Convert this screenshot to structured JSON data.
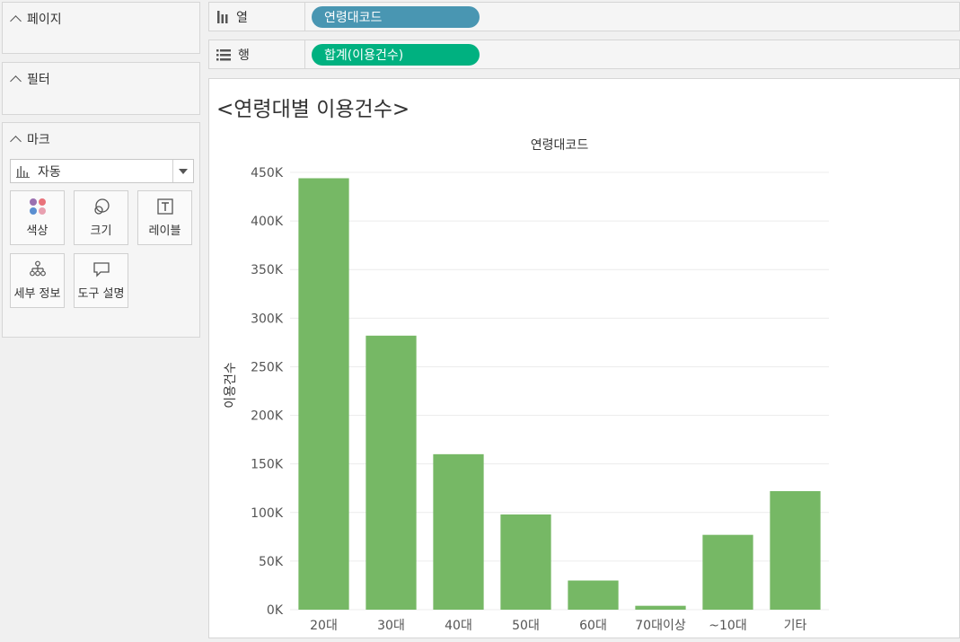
{
  "cards": {
    "pages": {
      "title": "페이지"
    },
    "filters": {
      "title": "필터"
    },
    "marks": {
      "title": "마크",
      "mark_type": "자동",
      "buttons": {
        "color": "색상",
        "size": "크기",
        "label": "레이블",
        "detail": "세부 정보",
        "tooltip": "도구 설명"
      }
    }
  },
  "shelves": {
    "columns": {
      "label": "열",
      "pill": "연령대코드",
      "pill_color": "#4996b2"
    },
    "rows": {
      "label": "행",
      "pill": "합계(이용건수)",
      "pill_color": "#00b180"
    }
  },
  "view": {
    "title": "<연령대별 이용건수>"
  },
  "chart_data": {
    "type": "bar",
    "title": "",
    "header": "연령대코드",
    "categories": [
      "20대",
      "30대",
      "40대",
      "50대",
      "60대",
      "70대이상",
      "~10대",
      "기타"
    ],
    "values": [
      444000,
      282000,
      160000,
      98000,
      30000,
      4000,
      77000,
      122000
    ],
    "ylabel": "이용건수",
    "xlabel": "",
    "ylim": [
      0,
      450000
    ],
    "ticks": [
      0,
      50000,
      100000,
      150000,
      200000,
      250000,
      300000,
      350000,
      400000,
      450000
    ],
    "tick_labels": [
      "0K",
      "50K",
      "100K",
      "150K",
      "200K",
      "250K",
      "300K",
      "350K",
      "400K",
      "450K"
    ],
    "bar_color": "#76b865",
    "grid": true
  }
}
